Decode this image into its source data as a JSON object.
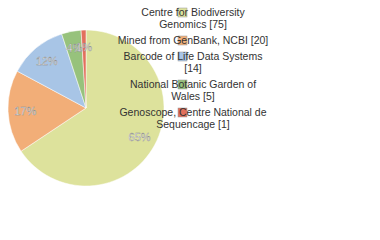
{
  "chart_data": {
    "type": "pie",
    "categories": [
      "Centre for Biodiversity Genomics [75]",
      "Mined from GenBank, NCBI [20]",
      "Barcode of Life Data Systems [14]",
      "National Botanic Garden of Wales [5]",
      "Genoscope, Centre National de Sequencage [1]"
    ],
    "values": [
      65,
      17,
      12,
      4,
      1
    ],
    "value_labels": [
      "65%",
      "17%",
      "12%",
      "4%",
      "1%"
    ],
    "colors": [
      "#dde29c",
      "#f2ae78",
      "#a8c5e6",
      "#97c27c",
      "#e2705c"
    ],
    "data_labels": true,
    "legend": "top-right"
  }
}
